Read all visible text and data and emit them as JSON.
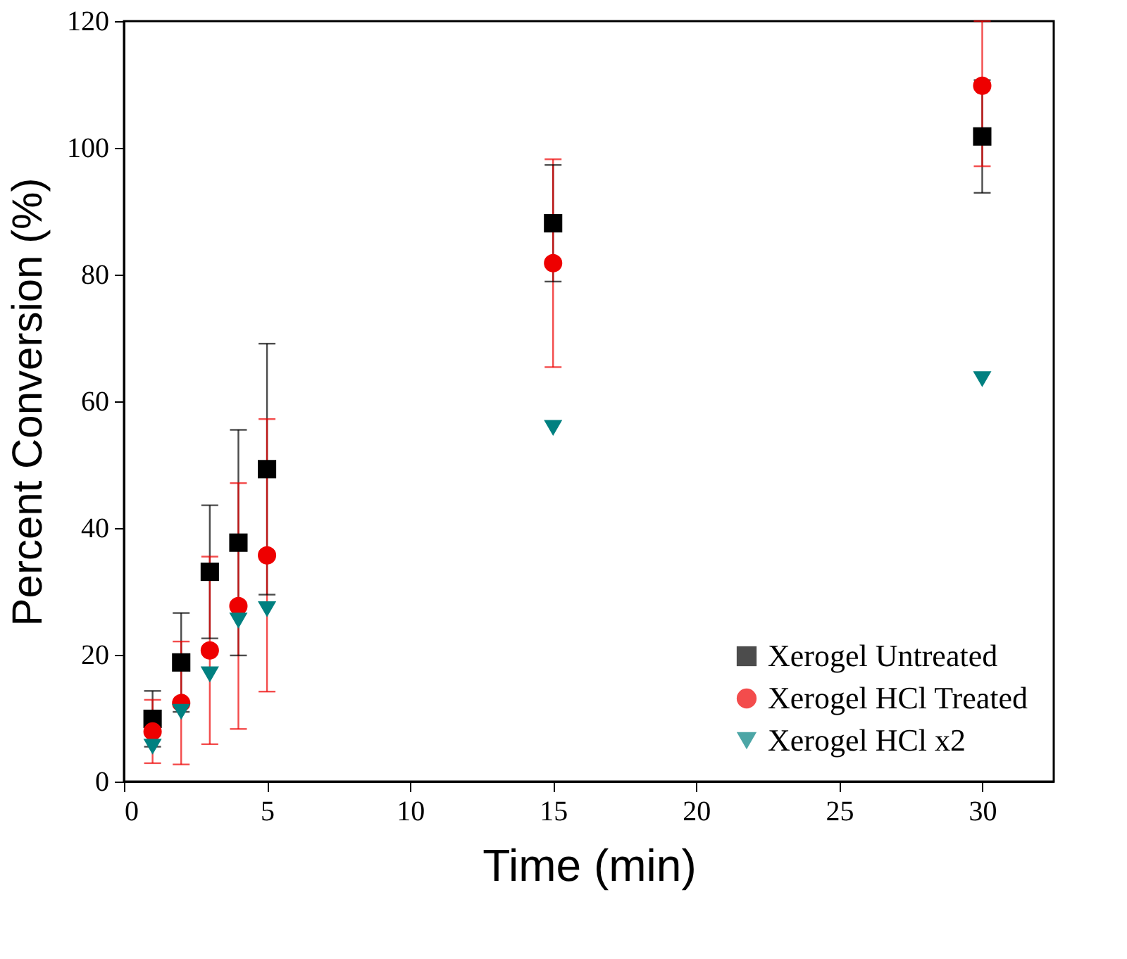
{
  "chart_data": {
    "type": "scatter",
    "xlabel": "Time (min)",
    "ylabel": "Percent Conversion (%)",
    "x": [
      1,
      2,
      3,
      4,
      5,
      15,
      30
    ],
    "series": [
      {
        "name": "Xerogel Untreated",
        "color": "#000000",
        "marker": "square",
        "values": [
          9.9,
          18.8,
          33.1,
          37.7,
          49.3,
          88.1,
          101.8
        ],
        "errors": [
          4.4,
          7.8,
          10.5,
          17.8,
          19.8,
          9.2,
          8.9
        ]
      },
      {
        "name": "Xerogel HCl Treated",
        "color": "#ee0000",
        "marker": "circle",
        "values": [
          7.9,
          12.4,
          20.7,
          27.7,
          35.7,
          81.8,
          109.8
        ],
        "errors": [
          5.0,
          9.7,
          14.8,
          19.4,
          21.5,
          16.4,
          [
            97.1,
            120
          ]
        ]
      },
      {
        "name": "Xerogel HCl x2",
        "color": "#008080",
        "marker": "triangle",
        "values": [
          5.5,
          11.0,
          16.9,
          25.4,
          27.2,
          55.8,
          63.5
        ]
      }
    ],
    "xlim": [
      0,
      32.5
    ],
    "xticks": [
      0,
      5,
      10,
      15,
      20,
      25,
      30
    ],
    "ylim": [
      0,
      120
    ],
    "yticks": [
      0,
      20,
      40,
      60,
      80,
      100,
      120
    ],
    "grid": false,
    "legend": "bottom right"
  }
}
